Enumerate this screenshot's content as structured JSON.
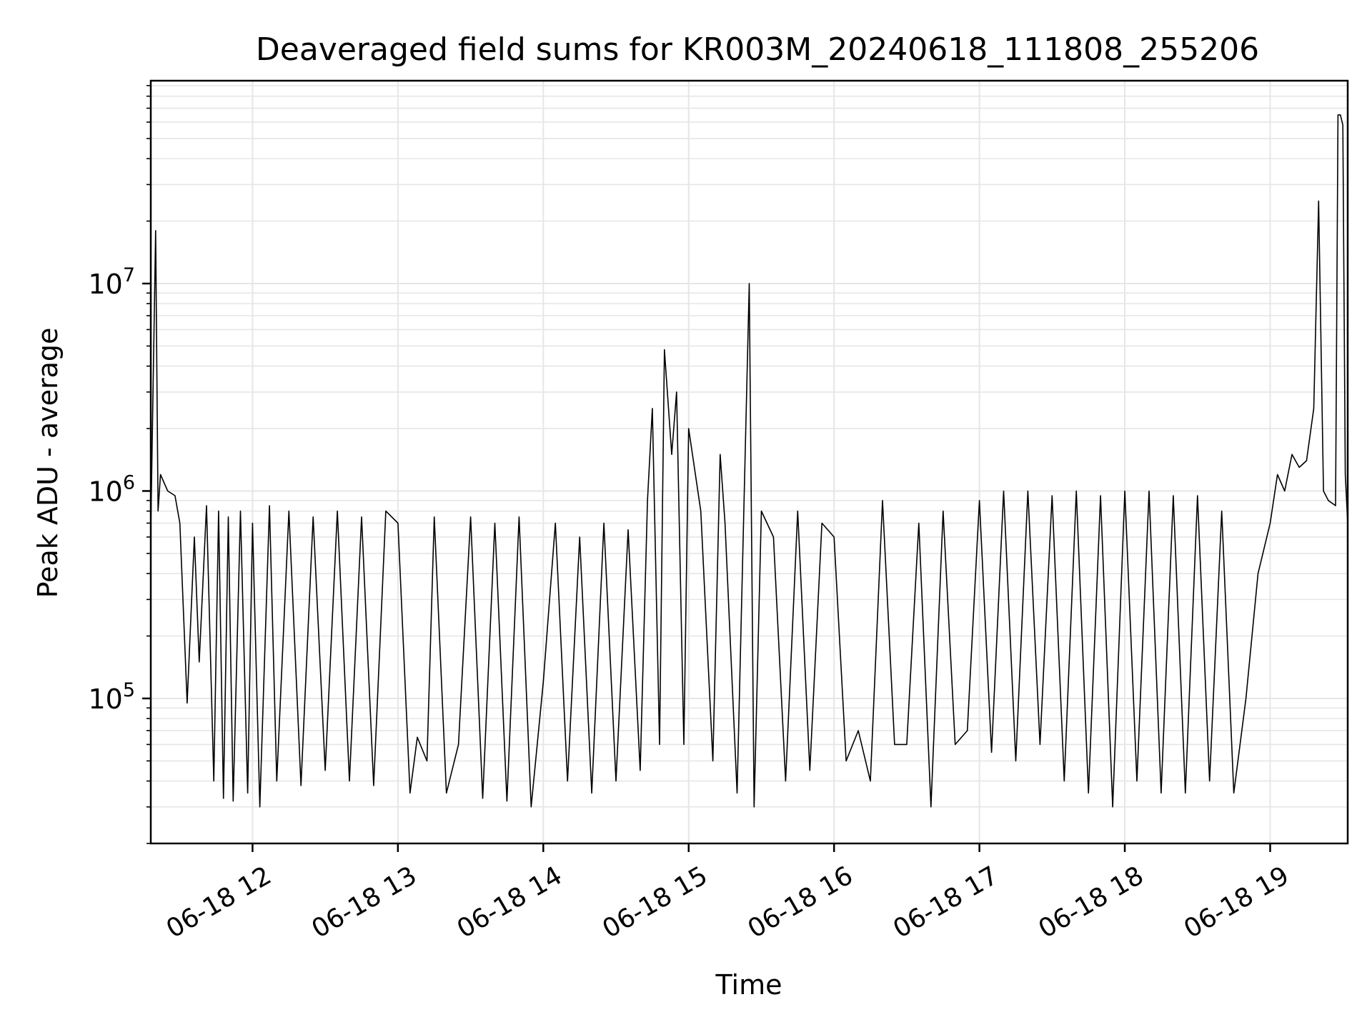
{
  "chart_data": {
    "type": "line",
    "title": "Deaveraged field sums for KR003M_20240618_111808_255206",
    "xlabel": "Time",
    "ylabel": "Peak ADU - average",
    "yscale": "log",
    "xlim": [
      "2024-06-18 11:18",
      "2024-06-18 19:32"
    ],
    "ylim": [
      20000,
      95000000
    ],
    "x_ticks": [
      {
        "value": "2024-06-18 12:00",
        "label": "06-18 12"
      },
      {
        "value": "2024-06-18 13:00",
        "label": "06-18 13"
      },
      {
        "value": "2024-06-18 14:00",
        "label": "06-18 14"
      },
      {
        "value": "2024-06-18 15:00",
        "label": "06-18 15"
      },
      {
        "value": "2024-06-18 16:00",
        "label": "06-18 16"
      },
      {
        "value": "2024-06-18 17:00",
        "label": "06-18 17"
      },
      {
        "value": "2024-06-18 18:00",
        "label": "06-18 18"
      },
      {
        "value": "2024-06-18 19:00",
        "label": "06-18 19"
      }
    ],
    "y_ticks": [
      {
        "value": 100000,
        "base": "10",
        "exp": "5"
      },
      {
        "value": 1000000,
        "base": "10",
        "exp": "6"
      },
      {
        "value": 10000000,
        "base": "10",
        "exp": "7"
      }
    ],
    "grid": true,
    "line_color": "#000000",
    "grid_color": "#e6e6e6",
    "series": [
      {
        "name": "",
        "x": [
          "2024-06-18 11:18",
          "2024-06-18 11:20",
          "2024-06-18 11:21",
          "2024-06-18 11:22",
          "2024-06-18 11:25",
          "2024-06-18 11:28",
          "2024-06-18 11:30",
          "2024-06-18 11:33",
          "2024-06-18 11:36",
          "2024-06-18 11:38",
          "2024-06-18 11:41",
          "2024-06-18 11:44",
          "2024-06-18 11:46",
          "2024-06-18 11:48",
          "2024-06-18 11:50",
          "2024-06-18 11:52",
          "2024-06-18 11:55",
          "2024-06-18 11:58",
          "2024-06-18 12:00",
          "2024-06-18 12:03",
          "2024-06-18 12:07",
          "2024-06-18 12:10",
          "2024-06-18 12:15",
          "2024-06-18 12:20",
          "2024-06-18 12:25",
          "2024-06-18 12:30",
          "2024-06-18 12:35",
          "2024-06-18 12:40",
          "2024-06-18 12:45",
          "2024-06-18 12:50",
          "2024-06-18 12:55",
          "2024-06-18 13:00",
          "2024-06-18 13:05",
          "2024-06-18 13:08",
          "2024-06-18 13:12",
          "2024-06-18 13:15",
          "2024-06-18 13:20",
          "2024-06-18 13:25",
          "2024-06-18 13:30",
          "2024-06-18 13:35",
          "2024-06-18 13:40",
          "2024-06-18 13:45",
          "2024-06-18 13:50",
          "2024-06-18 13:55",
          "2024-06-18 14:00",
          "2024-06-18 14:05",
          "2024-06-18 14:10",
          "2024-06-18 14:15",
          "2024-06-18 14:20",
          "2024-06-18 14:25",
          "2024-06-18 14:30",
          "2024-06-18 14:35",
          "2024-06-18 14:40",
          "2024-06-18 14:43",
          "2024-06-18 14:45",
          "2024-06-18 14:48",
          "2024-06-18 14:50",
          "2024-06-18 14:53",
          "2024-06-18 14:55",
          "2024-06-18 14:58",
          "2024-06-18 15:00",
          "2024-06-18 15:05",
          "2024-06-18 15:10",
          "2024-06-18 15:13",
          "2024-06-18 15:15",
          "2024-06-18 15:20",
          "2024-06-18 15:25",
          "2024-06-18 15:27",
          "2024-06-18 15:30",
          "2024-06-18 15:35",
          "2024-06-18 15:40",
          "2024-06-18 15:45",
          "2024-06-18 15:50",
          "2024-06-18 15:55",
          "2024-06-18 16:00",
          "2024-06-18 16:05",
          "2024-06-18 16:10",
          "2024-06-18 16:15",
          "2024-06-18 16:20",
          "2024-06-18 16:25",
          "2024-06-18 16:30",
          "2024-06-18 16:35",
          "2024-06-18 16:40",
          "2024-06-18 16:45",
          "2024-06-18 16:50",
          "2024-06-18 16:55",
          "2024-06-18 17:00",
          "2024-06-18 17:05",
          "2024-06-18 17:10",
          "2024-06-18 17:15",
          "2024-06-18 17:20",
          "2024-06-18 17:25",
          "2024-06-18 17:30",
          "2024-06-18 17:35",
          "2024-06-18 17:40",
          "2024-06-18 17:45",
          "2024-06-18 17:50",
          "2024-06-18 17:55",
          "2024-06-18 18:00",
          "2024-06-18 18:05",
          "2024-06-18 18:10",
          "2024-06-18 18:15",
          "2024-06-18 18:20",
          "2024-06-18 18:25",
          "2024-06-18 18:30",
          "2024-06-18 18:35",
          "2024-06-18 18:40",
          "2024-06-18 18:45",
          "2024-06-18 18:50",
          "2024-06-18 18:55",
          "2024-06-18 19:00",
          "2024-06-18 19:03",
          "2024-06-18 19:06",
          "2024-06-18 19:09",
          "2024-06-18 19:12",
          "2024-06-18 19:15",
          "2024-06-18 19:18",
          "2024-06-18 19:20",
          "2024-06-18 19:22",
          "2024-06-18 19:24",
          "2024-06-18 19:27",
          "2024-06-18 19:28",
          "2024-06-18 19:29",
          "2024-06-18 19:30",
          "2024-06-18 19:31",
          "2024-06-18 19:32"
        ],
        "values": [
          650000,
          18000000,
          800000,
          1200000,
          1000000,
          950000,
          700000,
          95000,
          600000,
          150000,
          850000,
          40000,
          800000,
          33000,
          750000,
          32000,
          800000,
          35000,
          700000,
          30000,
          850000,
          40000,
          800000,
          38000,
          750000,
          45000,
          800000,
          40000,
          750000,
          38000,
          800000,
          700000,
          35000,
          65000,
          50000,
          750000,
          35000,
          60000,
          750000,
          33000,
          700000,
          32000,
          750000,
          30000,
          120000,
          700000,
          40000,
          600000,
          35000,
          700000,
          40000,
          650000,
          45000,
          900000,
          2500000,
          60000,
          4800000,
          1500000,
          3000000,
          60000,
          2000000,
          800000,
          50000,
          1500000,
          700000,
          35000,
          10000000,
          30000,
          800000,
          600000,
          40000,
          800000,
          45000,
          700000,
          600000,
          50000,
          70000,
          40000,
          900000,
          60000,
          60000,
          700000,
          30000,
          800000,
          60000,
          70000,
          900000,
          55000,
          1000000,
          50000,
          1000000,
          60000,
          950000,
          40000,
          1000000,
          35000,
          950000,
          30000,
          1000000,
          40000,
          1000000,
          35000,
          950000,
          35000,
          950000,
          40000,
          800000,
          35000,
          100000,
          400000,
          700000,
          1200000,
          1000000,
          1500000,
          1300000,
          1400000,
          2500000,
          25000000,
          1000000,
          900000,
          850000,
          65000000,
          65000000,
          58000000,
          1200000,
          700000
        ]
      }
    ]
  }
}
